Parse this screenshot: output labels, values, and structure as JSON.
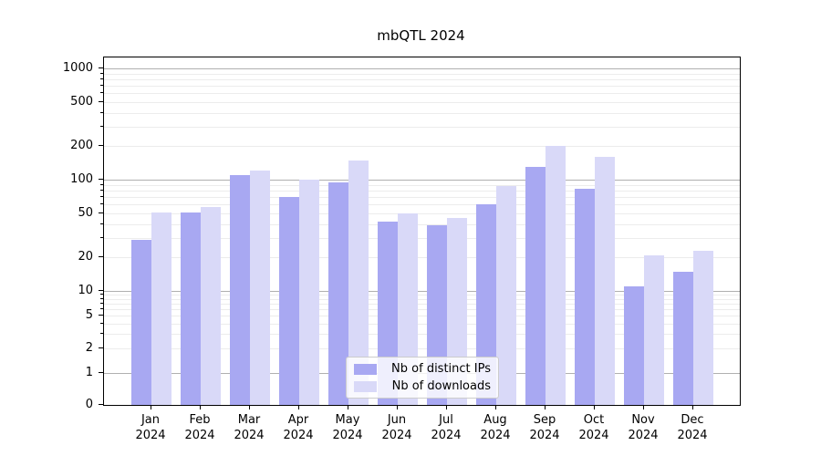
{
  "chart_data": {
    "type": "bar",
    "title": "mbQTL 2024",
    "categories": [
      "Jan",
      "Feb",
      "Mar",
      "Apr",
      "May",
      "Jun",
      "Jul",
      "Aug",
      "Sep",
      "Oct",
      "Nov",
      "Dec"
    ],
    "category_sublabel": "2024",
    "series": [
      {
        "name": "Nb of distinct IPs",
        "color": "#a8a8f2",
        "values": [
          29,
          51,
          110,
          70,
          94,
          42,
          39,
          60,
          130,
          83,
          11,
          15
        ]
      },
      {
        "name": "Nb of downloads",
        "color": "#d9d9f8",
        "values": [
          51,
          57,
          120,
          100,
          150,
          50,
          45,
          87,
          200,
          160,
          21,
          23
        ]
      }
    ],
    "y_axis": {
      "scale": "symlog",
      "ticks": [
        0,
        1,
        2,
        5,
        10,
        20,
        50,
        100,
        200,
        500,
        1000
      ],
      "tick_labels": [
        "0",
        "1",
        "2",
        "5",
        "10",
        "20",
        "50",
        "100",
        "200",
        "500",
        "1000"
      ],
      "ylim": [
        0,
        1250
      ]
    },
    "grid": "horizontal, major gray lines at decades, light minor log lines",
    "legend": {
      "position": "inside lower-center",
      "entries": [
        "Nb of distinct IPs",
        "Nb of downloads"
      ]
    },
    "colors": {
      "major_grid": "#b0b0b0",
      "minor_grid": "#ececec",
      "spine": "#000000",
      "legend_border": "#cccccc"
    }
  }
}
